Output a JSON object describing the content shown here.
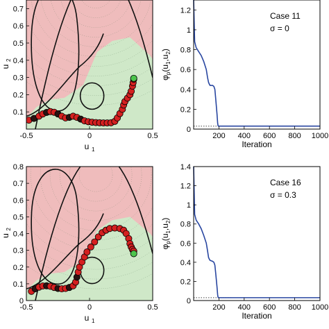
{
  "chart_data": [
    {
      "type": "scatter",
      "xlabel": "u",
      "xlabel_sub": "1",
      "ylabel": "u",
      "ylabel_sub": "2",
      "xlim": [
        -0.5,
        0.5
      ],
      "ylim": [
        0,
        0.75
      ],
      "xticks": [
        -0.5,
        0,
        0.5
      ],
      "xtick_labels": [
        "-0.5",
        "0",
        "0.5"
      ],
      "yticks": [
        0.1,
        0.2,
        0.3,
        0.4,
        0.5,
        0.6,
        0.7
      ],
      "ytick_labels": [
        "0.1",
        "0.2",
        "0.3",
        "0.4",
        "0.5",
        "0.6",
        "0.7"
      ],
      "colors": {
        "infeasible": "#efbcbc",
        "feasible": "#cfe8c8",
        "boundary": "#111111",
        "path": "#d42020",
        "path_dark": "#2a1212",
        "end": "#4cc44c"
      },
      "path": [
        [
          -0.48,
          0.052
        ],
        [
          -0.44,
          0.062
        ],
        [
          -0.4,
          0.075
        ],
        [
          -0.37,
          0.088
        ],
        [
          -0.34,
          0.097
        ],
        [
          -0.31,
          0.102
        ],
        [
          -0.28,
          0.098
        ],
        [
          -0.25,
          0.088
        ],
        [
          -0.22,
          0.075
        ],
        [
          -0.19,
          0.065
        ],
        [
          -0.16,
          0.068
        ],
        [
          -0.13,
          0.075
        ],
        [
          -0.1,
          0.068
        ],
        [
          -0.07,
          0.058
        ],
        [
          -0.04,
          0.048
        ],
        [
          -0.01,
          0.043
        ],
        [
          0.02,
          0.04
        ],
        [
          0.05,
          0.038
        ],
        [
          0.08,
          0.037
        ],
        [
          0.11,
          0.036
        ],
        [
          0.14,
          0.036
        ],
        [
          0.17,
          0.037
        ],
        [
          0.2,
          0.045
        ],
        [
          0.22,
          0.065
        ],
        [
          0.24,
          0.09
        ],
        [
          0.26,
          0.115
        ],
        [
          0.27,
          0.14
        ],
        [
          0.28,
          0.16
        ],
        [
          0.3,
          0.18
        ],
        [
          0.32,
          0.2
        ],
        [
          0.33,
          0.22
        ],
        [
          0.34,
          0.25
        ],
        [
          0.345,
          0.27
        ],
        [
          0.35,
          0.29
        ]
      ],
      "end_point": [
        0.35,
        0.295
      ]
    },
    {
      "type": "line",
      "xlabel": "Iteration",
      "ylabel_parts": [
        "φ",
        "p",
        "(u",
        "1",
        ",u",
        "2",
        ")"
      ],
      "xlim": [
        0,
        1000
      ],
      "ylim": [
        0,
        1.3
      ],
      "xticks": [
        200,
        400,
        600,
        800,
        1000
      ],
      "xtick_labels": [
        "200",
        "400",
        "600",
        "800",
        "1000"
      ],
      "yticks": [
        0,
        0.2,
        0.4,
        0.6,
        0.8,
        1,
        1.2
      ],
      "ytick_labels": [
        "0",
        "0.2",
        "0.4",
        "0.6",
        "0.8",
        "1",
        "1.2"
      ],
      "annotation": [
        "Case 11",
        "σ = 0"
      ],
      "colors": {
        "line": "#2846a0"
      },
      "x": [
        0,
        8,
        20,
        40,
        60,
        80,
        100,
        110,
        118,
        125,
        130,
        150,
        160,
        168,
        175,
        185,
        190,
        193,
        196,
        200,
        300,
        400,
        600,
        800,
        1000
      ],
      "y": [
        1.3,
        0.88,
        0.82,
        0.78,
        0.74,
        0.68,
        0.6,
        0.52,
        0.47,
        0.45,
        0.44,
        0.44,
        0.43,
        0.4,
        0.3,
        0.15,
        0.06,
        0.035,
        0.03,
        0.03,
        0.03,
        0.03,
        0.03,
        0.03,
        0.03
      ],
      "reference_y": 0.03
    },
    {
      "type": "scatter",
      "xlabel": "u",
      "xlabel_sub": "1",
      "ylabel": "u",
      "ylabel_sub": "2",
      "xlim": [
        -0.5,
        0.5
      ],
      "ylim": [
        0,
        0.8
      ],
      "xticks": [
        -0.5,
        0,
        0.5
      ],
      "xtick_labels": [
        "-0.5",
        "0",
        "0.5"
      ],
      "yticks": [
        0,
        0.1,
        0.2,
        0.3,
        0.4,
        0.5,
        0.6,
        0.7,
        0.8
      ],
      "ytick_labels": [
        "0",
        "0.1",
        "0.2",
        "0.3",
        "0.4",
        "0.5",
        "0.6",
        "0.7",
        "0.8"
      ],
      "colors": {
        "infeasible": "#efbcbc",
        "feasible": "#cfe8c8",
        "boundary": "#111111",
        "path": "#d42020",
        "path_dark": "#2a1212",
        "end": "#4cc44c"
      },
      "path": [
        [
          -0.46,
          0.055
        ],
        [
          -0.43,
          0.07
        ],
        [
          -0.4,
          0.08
        ],
        [
          -0.37,
          0.087
        ],
        [
          -0.34,
          0.088
        ],
        [
          -0.31,
          0.085
        ],
        [
          -0.28,
          0.078
        ],
        [
          -0.25,
          0.072
        ],
        [
          -0.22,
          0.07
        ],
        [
          -0.19,
          0.072
        ],
        [
          -0.16,
          0.078
        ],
        [
          -0.13,
          0.088
        ],
        [
          -0.11,
          0.11
        ],
        [
          -0.1,
          0.14
        ],
        [
          -0.09,
          0.17
        ],
        [
          -0.08,
          0.2
        ],
        [
          -0.06,
          0.23
        ],
        [
          -0.04,
          0.26
        ],
        [
          -0.02,
          0.29
        ],
        [
          0.01,
          0.32
        ],
        [
          0.04,
          0.35
        ],
        [
          0.07,
          0.38
        ],
        [
          0.1,
          0.405
        ],
        [
          0.13,
          0.42
        ],
        [
          0.16,
          0.43
        ],
        [
          0.2,
          0.433
        ],
        [
          0.24,
          0.43
        ],
        [
          0.27,
          0.42
        ],
        [
          0.29,
          0.4
        ],
        [
          0.31,
          0.37
        ],
        [
          0.32,
          0.34
        ],
        [
          0.33,
          0.32
        ],
        [
          0.34,
          0.305
        ],
        [
          0.35,
          0.295
        ]
      ],
      "end_point": [
        0.35,
        0.28
      ]
    },
    {
      "type": "line",
      "xlabel": "Iteration",
      "ylabel_parts": [
        "φ",
        "p",
        "(u",
        "1",
        ",u",
        "2",
        ")"
      ],
      "xlim": [
        0,
        1000
      ],
      "ylim": [
        0,
        1.4
      ],
      "xticks": [
        200,
        400,
        600,
        800,
        1000
      ],
      "xtick_labels": [
        "200",
        "400",
        "600",
        "800",
        "1000"
      ],
      "yticks": [
        0,
        0.2,
        0.4,
        0.6,
        0.8,
        1,
        1.2,
        1.4
      ],
      "ytick_labels": [
        "0",
        "0.2",
        "0.4",
        "0.6",
        "0.8",
        "1",
        "1.2",
        "1.4"
      ],
      "annotation": [
        "Case 16",
        "σ = 0.3"
      ],
      "colors": {
        "line": "#2846a0"
      },
      "x": [
        0,
        8,
        20,
        40,
        60,
        80,
        100,
        110,
        118,
        125,
        130,
        150,
        160,
        168,
        175,
        185,
        190,
        193,
        196,
        200,
        300,
        400,
        600,
        800,
        1000
      ],
      "y": [
        1.4,
        0.9,
        0.84,
        0.8,
        0.75,
        0.68,
        0.6,
        0.52,
        0.45,
        0.43,
        0.42,
        0.41,
        0.4,
        0.37,
        0.28,
        0.14,
        0.06,
        0.035,
        0.03,
        0.03,
        0.03,
        0.03,
        0.03,
        0.03,
        0.03
      ],
      "reference_y": 0.03
    }
  ]
}
